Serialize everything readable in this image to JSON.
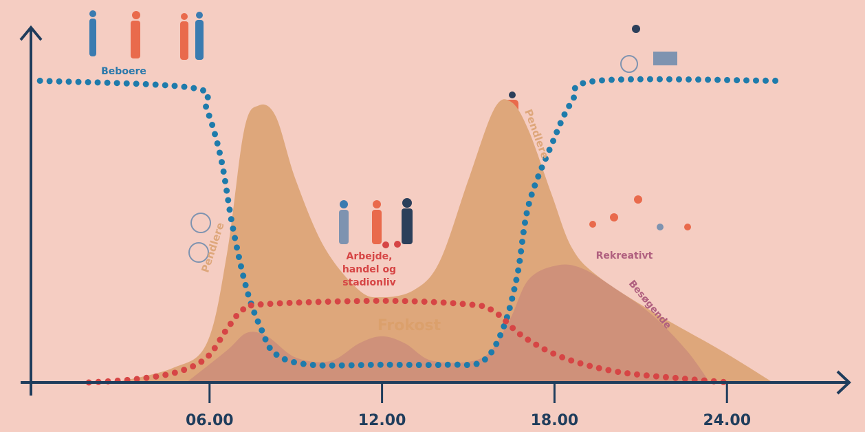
{
  "chart_data": {
    "type": "area",
    "xlim": [
      -0.2,
      28.3
    ],
    "ylim": [
      0,
      100
    ],
    "xticks": [
      {
        "value": 6,
        "label": "06.00"
      },
      {
        "value": 12,
        "label": "12.00"
      },
      {
        "value": 18,
        "label": "18.00"
      },
      {
        "value": 24,
        "label": "24.00"
      }
    ],
    "series": [
      {
        "name": "Pendlere",
        "kind": "area",
        "color": "#dea77b",
        "x": [
          2.7,
          4.7,
          5.9,
          6.6,
          7.2,
          7.7,
          8.3,
          9.0,
          10.0,
          11.2,
          12.0,
          13.1,
          14.0,
          15.0,
          15.9,
          16.5,
          17.1,
          17.9,
          18.6,
          19.5,
          21.4,
          23.8,
          25.6
        ],
        "values": [
          0,
          4,
          11,
          36,
          71,
          78,
          75,
          57,
          38,
          26,
          24,
          26,
          34,
          57,
          77,
          79,
          71,
          53,
          38,
          30,
          20,
          9,
          0
        ]
      },
      {
        "name": "Besøgende",
        "kind": "area",
        "color": "#c98a7a",
        "x": [
          5.2,
          6.6,
          7.3,
          8.0,
          9.0,
          10.2,
          11.2,
          12.0,
          12.8,
          13.8,
          15.5,
          16.4,
          17.1,
          18.1,
          19.0,
          20.2,
          21.4,
          22.6,
          23.4
        ],
        "values": [
          0,
          9,
          14,
          13,
          7,
          6,
          11,
          13,
          11,
          6,
          7,
          17,
          29,
          33,
          32,
          26,
          19,
          9,
          0
        ]
      },
      {
        "name": "Beboere",
        "kind": "dotted",
        "color": "#1e7bab",
        "x": [
          0.1,
          5.4,
          5.9,
          6.4,
          6.8,
          7.3,
          7.8,
          8.3,
          9.5,
          12.0,
          14.3,
          15.5,
          16.2,
          16.7,
          17.1,
          17.9,
          18.6,
          19.5,
          25.7
        ],
        "values": [
          85,
          83,
          77,
          63,
          44,
          26,
          15,
          8,
          5,
          5,
          5,
          6,
          15,
          30,
          50,
          67,
          79,
          85,
          85
        ]
      },
      {
        "name": "Arbejde, handel og stadionliv",
        "kind": "dotted",
        "color": "#d64545",
        "x": [
          1.8,
          3.5,
          4.9,
          5.9,
          6.6,
          7.1,
          7.8,
          12.0,
          15.0,
          15.9,
          16.9,
          18.3,
          20.2,
          22.6,
          24.1
        ],
        "values": [
          0,
          1,
          3,
          7,
          15,
          20,
          22,
          23,
          22,
          20,
          13,
          7,
          3,
          1,
          0
        ]
      }
    ],
    "annotations": [
      "Pendlere",
      "Frokost",
      "Rekreativt"
    ]
  }
}
